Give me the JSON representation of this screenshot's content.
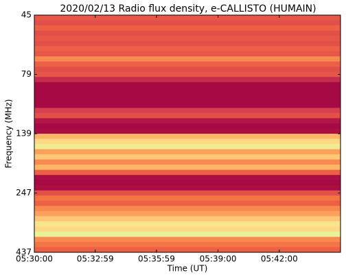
{
  "chart_data": {
    "type": "spectrogram",
    "title": "2020/02/13  Radio flux density, e-CALLISTO (HUMAIN)",
    "xlabel": "Time (UT)",
    "ylabel": "Frequency (MHz)",
    "xlim": [
      "05:30:00",
      "05:45:00"
    ],
    "xticks": [
      "05:30:00",
      "05:32:59",
      "05:35:59",
      "05:39:00",
      "05:42:00"
    ],
    "yticks": [
      45,
      79,
      139,
      247,
      437
    ],
    "zlim": [
      0,
      1
    ],
    "colormap": [
      "#9e0142",
      "#d53e4f",
      "#f46d43",
      "#fdae61",
      "#fee08b",
      "#e6f598",
      "#abdda4",
      "#66c2a5"
    ],
    "z": [
      0.22,
      0.2,
      0.25,
      0.2,
      0.22,
      0.2,
      0.25,
      0.22,
      0.35,
      0.25,
      0.2,
      0.22,
      0.1,
      0.02,
      0.02,
      0.02,
      0.02,
      0.02,
      0.15,
      0.2,
      0.05,
      0.02,
      0.03,
      0.45,
      0.55,
      0.65,
      0.4,
      0.5,
      0.35,
      0.45,
      0.25,
      0.03,
      0.02,
      0.03,
      0.2,
      0.3,
      0.25,
      0.35,
      0.4,
      0.5,
      0.6,
      0.55,
      0.7,
      0.35,
      0.3,
      0.25
    ]
  }
}
